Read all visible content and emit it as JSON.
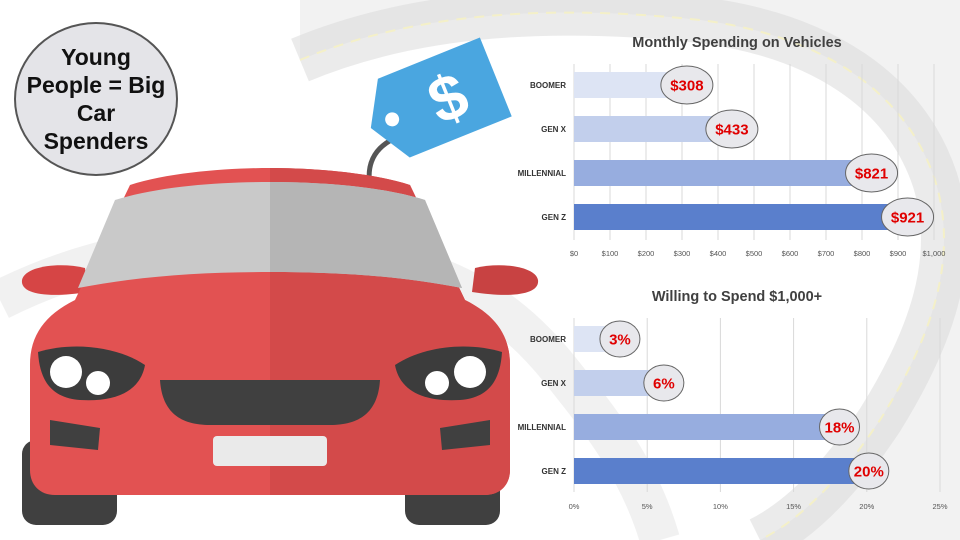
{
  "headline": "Young People = Big Car Spenders",
  "price_tag_symbol": "$",
  "colors": {
    "bar_shades": [
      "#dde4f4",
      "#c2cfec",
      "#97addf",
      "#5a7fcc"
    ],
    "value_text": "#e00000",
    "car_body": "#e25252",
    "tag": "#4aa6e0"
  },
  "chart_data": [
    {
      "type": "bar",
      "orientation": "horizontal",
      "title": "Monthly Spending on Vehicles",
      "categories": [
        "BOOMER",
        "GEN X",
        "MILLENNIAL",
        "GEN Z"
      ],
      "values": [
        308,
        433,
        821,
        921
      ],
      "value_labels": [
        "$308",
        "$433",
        "$821",
        "$921"
      ],
      "xlim": [
        0,
        1000
      ],
      "ticks": [
        0,
        100,
        200,
        300,
        400,
        500,
        600,
        700,
        800,
        900,
        1000
      ],
      "tick_labels": [
        "$0",
        "$100",
        "$200",
        "$300",
        "$400",
        "$500",
        "$600",
        "$700",
        "$800",
        "$900",
        "$1,000"
      ],
      "grid": true
    },
    {
      "type": "bar",
      "orientation": "horizontal",
      "title": "Willing to Spend $1,000+",
      "categories": [
        "BOOMER",
        "GEN X",
        "MILLENNIAL",
        "GEN Z"
      ],
      "values": [
        3,
        6,
        18,
        20
      ],
      "value_labels": [
        "3%",
        "6%",
        "18%",
        "20%"
      ],
      "xlim": [
        0,
        25
      ],
      "ticks": [
        0,
        5,
        10,
        15,
        20,
        25
      ],
      "tick_labels": [
        "0%",
        "5%",
        "10%",
        "15%",
        "20%",
        "25%"
      ],
      "grid": true
    }
  ]
}
